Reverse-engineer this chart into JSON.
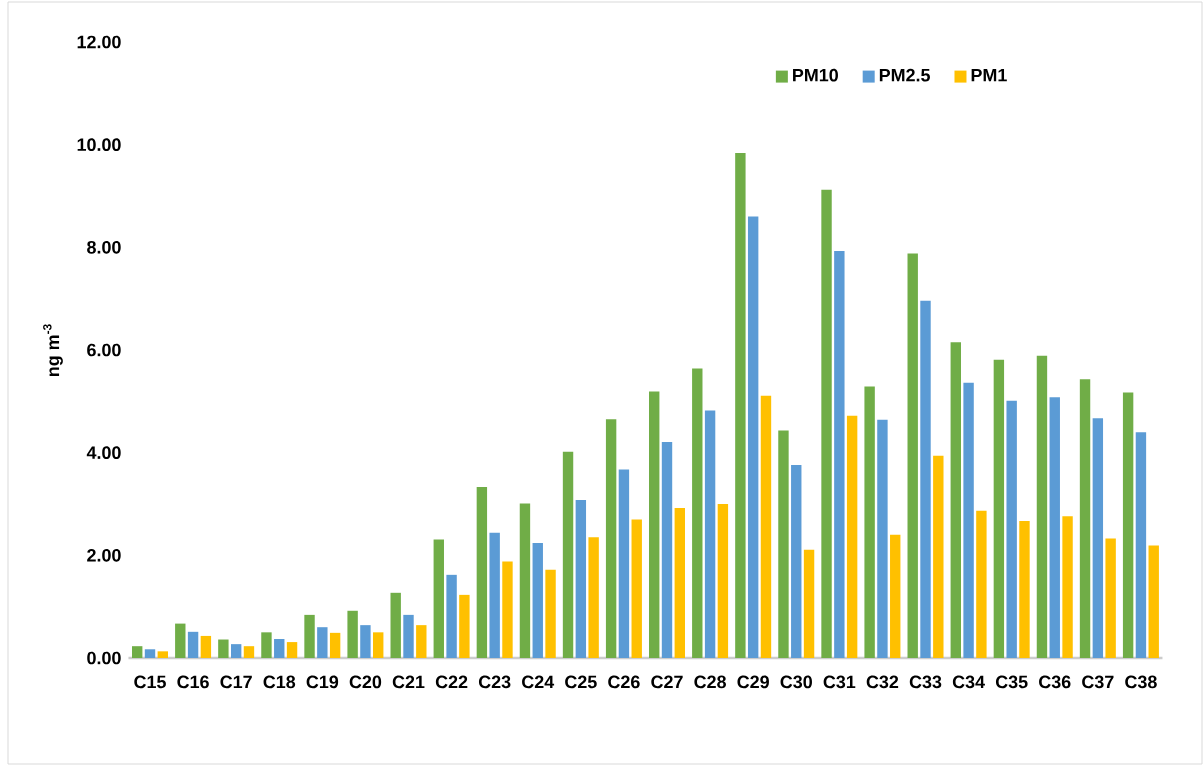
{
  "chart_data": {
    "type": "bar",
    "ylabel": "ng m$^{-3}$",
    "categories": [
      "C15",
      "C16",
      "C17",
      "C18",
      "C19",
      "C20",
      "C21",
      "C22",
      "C23",
      "C24",
      "C25",
      "C26",
      "C27",
      "C28",
      "C29",
      "C30",
      "C31",
      "C32",
      "C33",
      "C34",
      "C35",
      "C36",
      "C37",
      "C38"
    ],
    "series": [
      {
        "name": "PM10",
        "color": "#70ad47",
        "values": [
          0.23,
          0.67,
          0.36,
          0.5,
          0.84,
          0.92,
          1.27,
          2.31,
          3.33,
          3.01,
          4.02,
          4.65,
          5.19,
          5.64,
          9.84,
          4.43,
          9.12,
          5.29,
          7.88,
          6.15,
          5.81,
          5.89,
          5.43,
          5.17
        ]
      },
      {
        "name": "PM2.5",
        "color": "#5b9bd5",
        "values": [
          0.17,
          0.51,
          0.27,
          0.37,
          0.6,
          0.64,
          0.84,
          1.62,
          2.44,
          2.24,
          3.08,
          3.67,
          4.21,
          4.82,
          8.6,
          3.76,
          7.93,
          4.64,
          6.96,
          5.36,
          5.01,
          5.08,
          4.67,
          4.4
        ]
      },
      {
        "name": "PM1",
        "color": "#ffc000",
        "values": [
          0.13,
          0.43,
          0.23,
          0.31,
          0.49,
          0.5,
          0.64,
          1.23,
          1.88,
          1.72,
          2.35,
          2.7,
          2.92,
          3.0,
          5.11,
          2.11,
          4.72,
          2.4,
          3.94,
          2.87,
          2.67,
          2.76,
          2.33,
          2.19
        ]
      }
    ],
    "ylim": [
      0,
      12
    ],
    "yticks": [
      {
        "value": 0,
        "label": "0.00"
      },
      {
        "value": 2,
        "label": "2.00"
      },
      {
        "value": 4,
        "label": "4.00"
      },
      {
        "value": 6,
        "label": "6.00"
      },
      {
        "value": 8,
        "label": "8.00"
      },
      {
        "value": 10,
        "label": "10.00"
      },
      {
        "value": 12,
        "label": "12.00"
      }
    ],
    "legend": "top right"
  }
}
